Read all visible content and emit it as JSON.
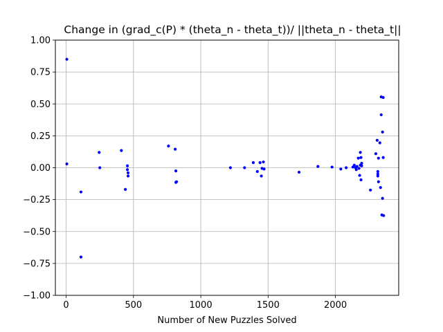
{
  "chart_data": {
    "type": "scatter",
    "title": "Change in (grad_c(P) * (theta_n - theta_t))/ ||theta_n - theta_t||",
    "xlabel": "Number of New Puzzles Solved",
    "ylabel": "",
    "xlim": [
      -80,
      2470
    ],
    "ylim": [
      -1.0,
      1.0
    ],
    "xticks": [
      0,
      500,
      1000,
      1500,
      2000
    ],
    "xtick_labels": [
      "0",
      "500",
      "1000",
      "1500",
      "2000"
    ],
    "yticks": [
      -1.0,
      -0.75,
      -0.5,
      -0.25,
      0.0,
      0.25,
      0.5,
      0.75,
      1.0
    ],
    "ytick_labels": [
      "−1.00",
      "−0.75",
      "−0.50",
      "−0.25",
      "0.00",
      "0.25",
      "0.50",
      "0.75",
      "1.00"
    ],
    "grid": true,
    "point_color": "#0000ff",
    "points": [
      [
        5,
        0.85
      ],
      [
        5,
        0.03
      ],
      [
        110,
        -0.19
      ],
      [
        110,
        -0.7
      ],
      [
        245,
        0.12
      ],
      [
        250,
        0.0
      ],
      [
        410,
        0.135
      ],
      [
        440,
        -0.17
      ],
      [
        455,
        0.015
      ],
      [
        455,
        -0.015
      ],
      [
        460,
        -0.04
      ],
      [
        460,
        -0.065
      ],
      [
        760,
        0.17
      ],
      [
        810,
        0.145
      ],
      [
        815,
        -0.115
      ],
      [
        815,
        -0.025
      ],
      [
        820,
        -0.11
      ],
      [
        1220,
        0.0
      ],
      [
        1325,
        0.0
      ],
      [
        1390,
        0.04
      ],
      [
        1420,
        -0.03
      ],
      [
        1440,
        0.04
      ],
      [
        1450,
        -0.065
      ],
      [
        1455,
        -0.005
      ],
      [
        1465,
        0.045
      ],
      [
        1470,
        -0.01
      ],
      [
        1730,
        -0.035
      ],
      [
        1870,
        0.01
      ],
      [
        1975,
        0.005
      ],
      [
        2040,
        -0.01
      ],
      [
        2080,
        0.0
      ],
      [
        2130,
        0.005
      ],
      [
        2140,
        0.02
      ],
      [
        2150,
        0.0
      ],
      [
        2155,
        -0.015
      ],
      [
        2160,
        0.01
      ],
      [
        2170,
        0.075
      ],
      [
        2175,
        -0.005
      ],
      [
        2180,
        -0.06
      ],
      [
        2185,
        0.12
      ],
      [
        2185,
        0.02
      ],
      [
        2190,
        0.08
      ],
      [
        2190,
        -0.095
      ],
      [
        2195,
        0.035
      ],
      [
        2195,
        0.015
      ],
      [
        2260,
        -0.175
      ],
      [
        2300,
        0.11
      ],
      [
        2310,
        0.215
      ],
      [
        2315,
        -0.03
      ],
      [
        2315,
        -0.05
      ],
      [
        2315,
        -0.065
      ],
      [
        2320,
        0.075
      ],
      [
        2320,
        -0.11
      ],
      [
        2330,
        0.195
      ],
      [
        2335,
        -0.155
      ],
      [
        2340,
        0.415
      ],
      [
        2340,
        0.555
      ],
      [
        2345,
        -0.37
      ],
      [
        2350,
        -0.24
      ],
      [
        2350,
        0.28
      ],
      [
        2355,
        0.08
      ],
      [
        2355,
        0.55
      ],
      [
        2358,
        -0.375
      ]
    ]
  }
}
